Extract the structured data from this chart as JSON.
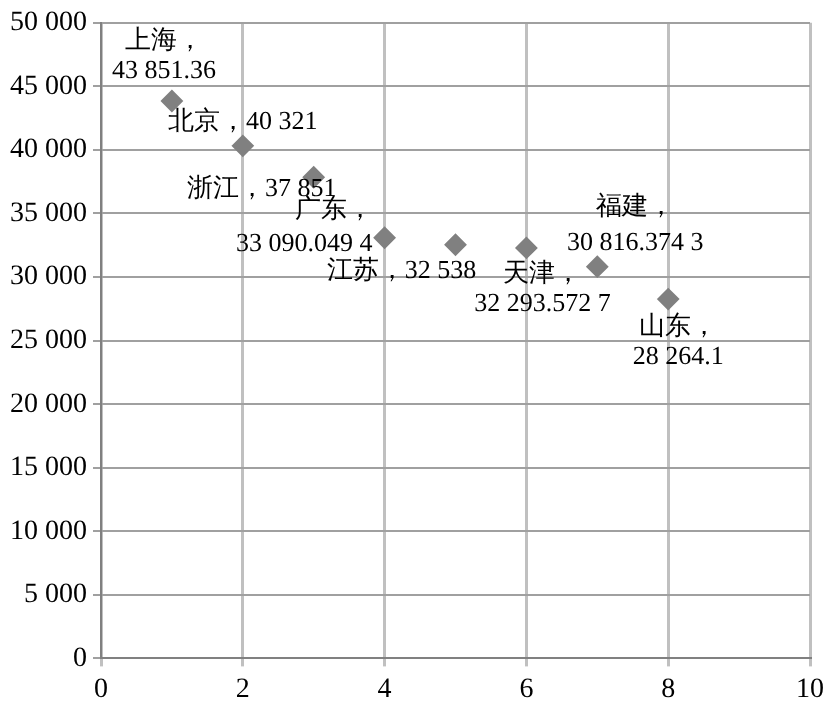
{
  "chart_data": {
    "type": "scatter",
    "marker": "diamond",
    "grid": true,
    "x": [
      1,
      2,
      3,
      4,
      5,
      6,
      7,
      8
    ],
    "values": [
      43851.36,
      40321,
      37851,
      33090.0494,
      32538,
      32293.5727,
      30816.3743,
      28264.1
    ],
    "color": "#808080",
    "value_labels": [
      "上海，43 851.36",
      "北京，40 321",
      "浙江，37 851",
      "广东，33 090.049 4",
      "江苏，32 538",
      "天津，32 293.572 7",
      "福建，30 816.374 3",
      "山东，28 264.1"
    ],
    "xlim": [
      0,
      10
    ],
    "xticks": [
      0,
      2,
      4,
      6,
      8,
      10
    ],
    "ylim": [
      0,
      50000
    ],
    "yticks": [
      {
        "value": 0,
        "label": "0"
      },
      {
        "value": 5000,
        "label": "5 000"
      },
      {
        "value": 10000,
        "label": "10 000"
      },
      {
        "value": 15000,
        "label": "15 000"
      },
      {
        "value": 20000,
        "label": "20 000"
      },
      {
        "value": 25000,
        "label": "25 000"
      },
      {
        "value": 30000,
        "label": "30 000"
      },
      {
        "value": 35000,
        "label": "35 000"
      },
      {
        "value": 40000,
        "label": "40 000"
      },
      {
        "value": 45000,
        "label": "45 000"
      },
      {
        "value": 50000,
        "label": "50 000"
      }
    ]
  }
}
